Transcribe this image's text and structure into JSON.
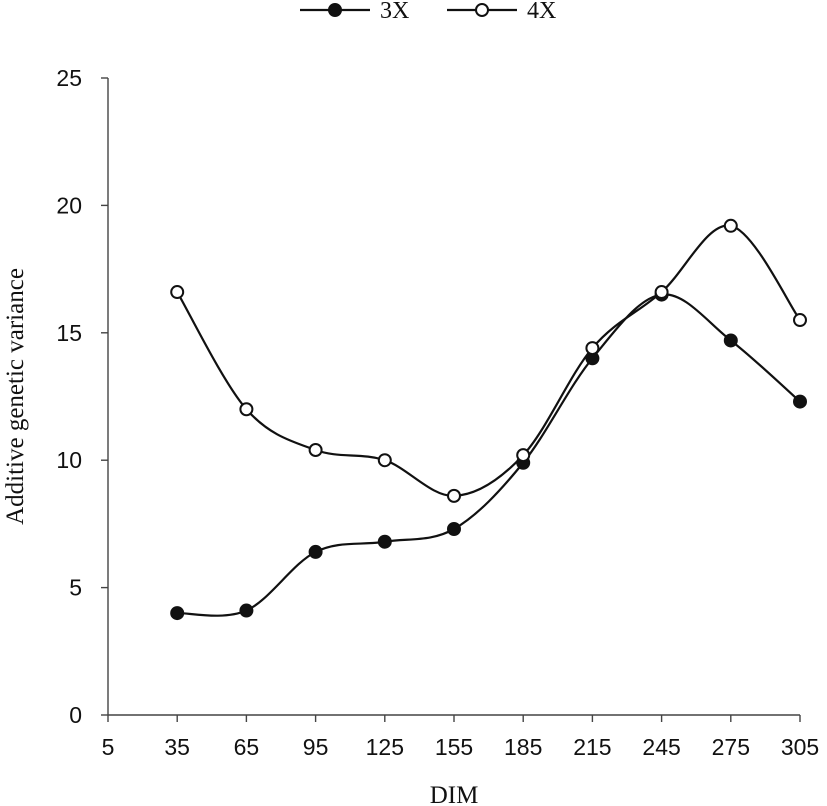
{
  "chart_data": {
    "type": "line",
    "xlabel": "DIM",
    "ylabel": "Additive genetic variance",
    "x_ticks": [
      5,
      35,
      65,
      95,
      125,
      155,
      185,
      215,
      245,
      275,
      305
    ],
    "y_ticks": [
      0,
      5,
      10,
      15,
      20,
      25
    ],
    "xlim": [
      5,
      305
    ],
    "ylim": [
      0,
      25
    ],
    "x": [
      35,
      65,
      95,
      125,
      155,
      185,
      215,
      245,
      275,
      305
    ],
    "legend_position": "top",
    "grid": false,
    "series": [
      {
        "name": "3X",
        "marker": "filled-circle",
        "color": "#111111",
        "values": [
          4.0,
          4.1,
          6.4,
          6.8,
          7.3,
          9.9,
          14.0,
          16.5,
          14.7,
          12.3
        ]
      },
      {
        "name": "4X",
        "marker": "open-circle",
        "color": "#111111",
        "values": [
          16.6,
          12.0,
          10.4,
          10.0,
          8.6,
          10.2,
          14.4,
          16.6,
          19.2,
          15.5
        ]
      }
    ]
  }
}
